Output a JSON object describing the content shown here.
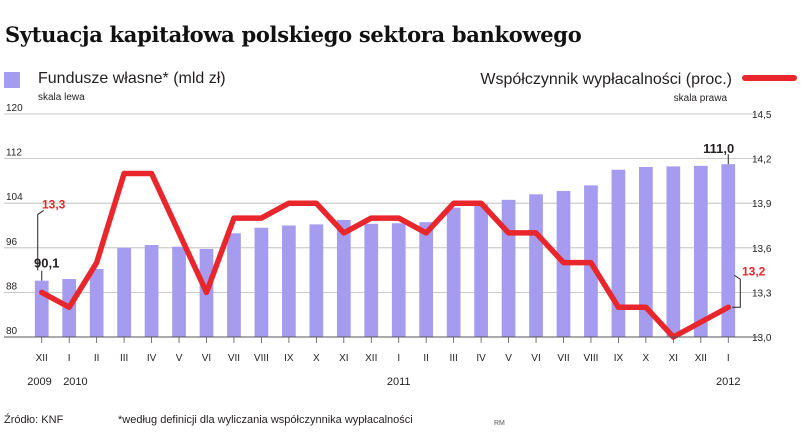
{
  "title": "Sytuacja kapitałowa polskiego sektora bankowego",
  "footer": {
    "source": "Źródło: KNF",
    "note": "*według definicji dla wyliczania współczynnika wypłacalności",
    "rm": "RM"
  },
  "colors": {
    "bars": "#a59cf0",
    "line": "#e8262b",
    "grid": "#b8b8b8",
    "text": "#231f20"
  },
  "chart_data": {
    "type": "bar",
    "categories": [
      "XII",
      "I",
      "II",
      "III",
      "IV",
      "V",
      "VI",
      "VII",
      "VIII",
      "IX",
      "X",
      "XI",
      "XII",
      "I",
      "II",
      "III",
      "IV",
      "V",
      "VI",
      "VII",
      "VIII",
      "IX",
      "X",
      "XI",
      "XII",
      "I"
    ],
    "years": [
      {
        "label": "2009",
        "category_index": 0
      },
      {
        "label": "2010",
        "category_index": 1
      },
      {
        "label": "2011",
        "category_index": 13
      },
      {
        "label": "2012",
        "category_index": 25
      }
    ],
    "series": [
      {
        "name": "Fundusze własne* (mld zł)",
        "sublabel": "skala lewa",
        "type": "bar",
        "axis": "left",
        "values": [
          90.1,
          90.4,
          92.2,
          96.0,
          96.5,
          96.2,
          95.8,
          98.6,
          99.6,
          100.0,
          100.2,
          101.0,
          100.3,
          100.4,
          100.6,
          103.2,
          103.8,
          104.6,
          105.6,
          106.2,
          107.2,
          110.0,
          110.5,
          110.6,
          110.7,
          111.0
        ]
      },
      {
        "name": "Współczynnik wypłacalności (proc.)",
        "sublabel": "skala prawa",
        "type": "line",
        "axis": "right",
        "values": [
          13.3,
          13.2,
          13.5,
          14.1,
          14.1,
          13.7,
          13.3,
          13.8,
          13.8,
          13.9,
          13.9,
          13.7,
          13.8,
          13.8,
          13.7,
          13.9,
          13.9,
          13.7,
          13.7,
          13.5,
          13.5,
          13.2,
          13.2,
          13.0,
          13.1,
          13.2
        ]
      }
    ],
    "y_left": {
      "min": 80,
      "max": 120,
      "ticks": [
        80,
        88,
        96,
        104,
        112,
        120
      ]
    },
    "y_right": {
      "min": 13.0,
      "max": 14.5,
      "ticks": [
        "13,0",
        "13,3",
        "13,6",
        "13,9",
        "14,2",
        "14,5"
      ]
    },
    "annotations": [
      {
        "series": 0,
        "category_index": 0,
        "text": "90,1"
      },
      {
        "series": 0,
        "category_index": 25,
        "text": "111,0"
      },
      {
        "series": 1,
        "category_index": 0,
        "text": "13,3"
      },
      {
        "series": 1,
        "category_index": 25,
        "text": "13,2"
      }
    ],
    "grid": true
  }
}
